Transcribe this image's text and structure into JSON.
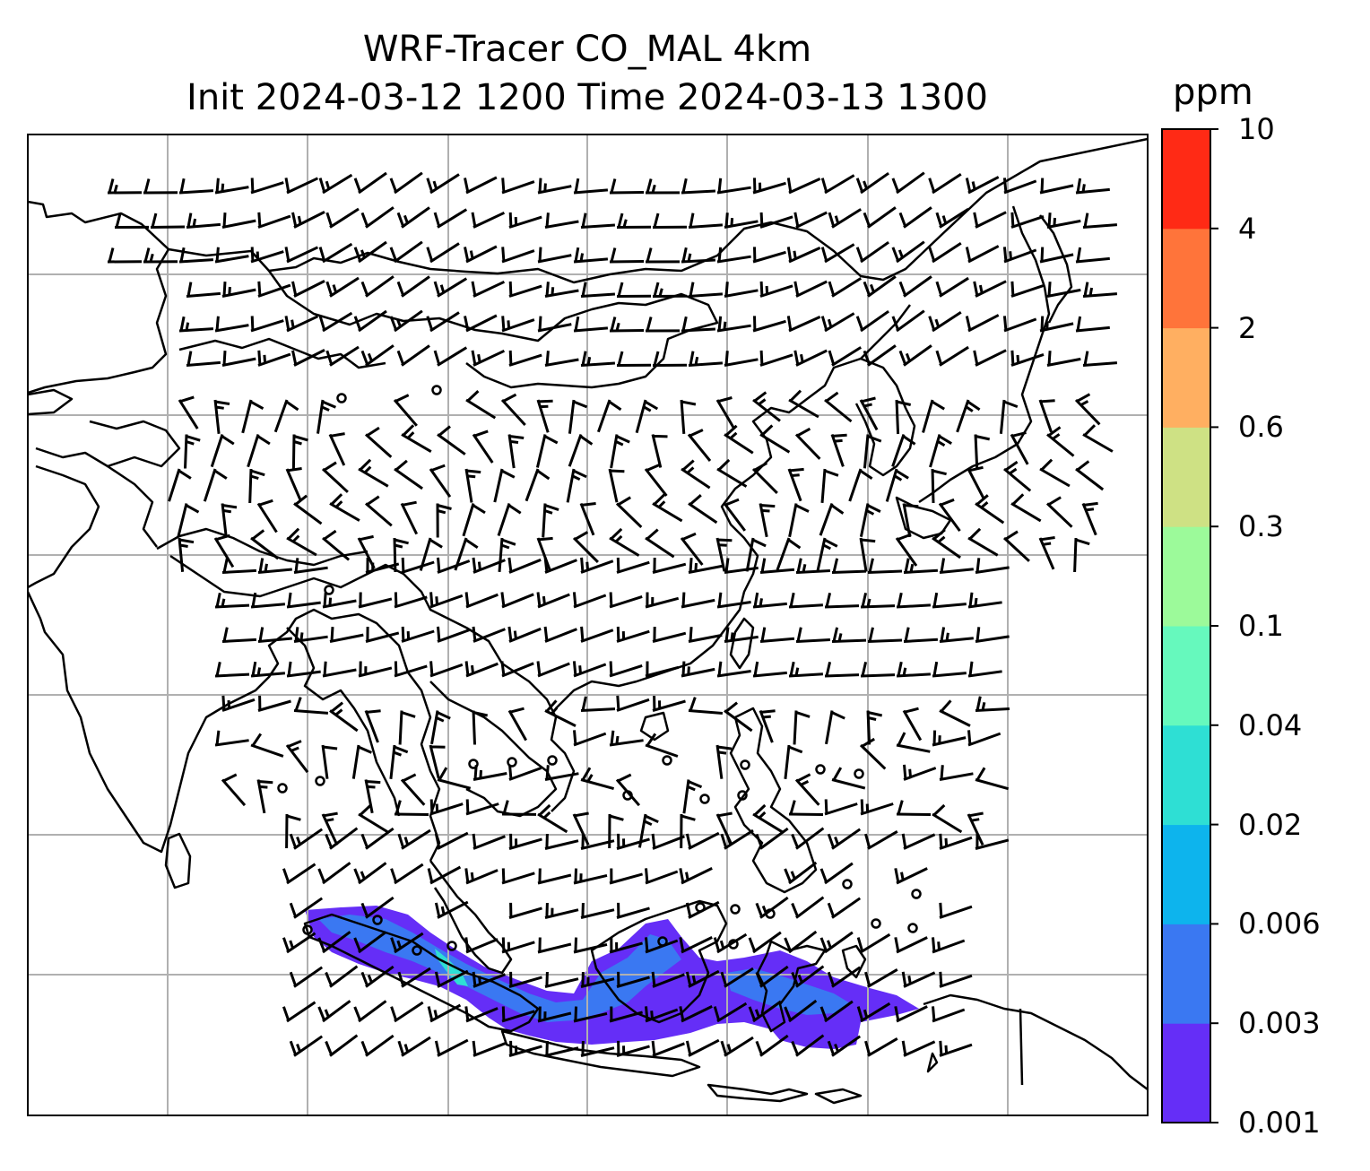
{
  "title": {
    "line1": "WRF-Tracer CO_MAL 4km",
    "line2": "Init 2024-03-12 1200 Time 2024-03-13 1300"
  },
  "colorbar": {
    "unit_label": "ppm",
    "levels": [
      "0.001",
      "0.003",
      "0.006",
      "0.02",
      "0.04",
      "0.1",
      "0.3",
      "0.6",
      "2",
      "4",
      "10"
    ],
    "colors": [
      "#652ef7",
      "#3a78f2",
      "#0db4ed",
      "#2edfd4",
      "#66f9bd",
      "#9cfa9a",
      "#cee184",
      "#ffaf61",
      "#ff743a",
      "#ff2a15"
    ]
  },
  "map": {
    "gridlines": true,
    "features": [
      "coastlines",
      "country-borders",
      "wind-barbs",
      "tracer-plume"
    ],
    "plume_colors": [
      "#652ef7",
      "#3a78f2",
      "#2edfd4"
    ]
  }
}
